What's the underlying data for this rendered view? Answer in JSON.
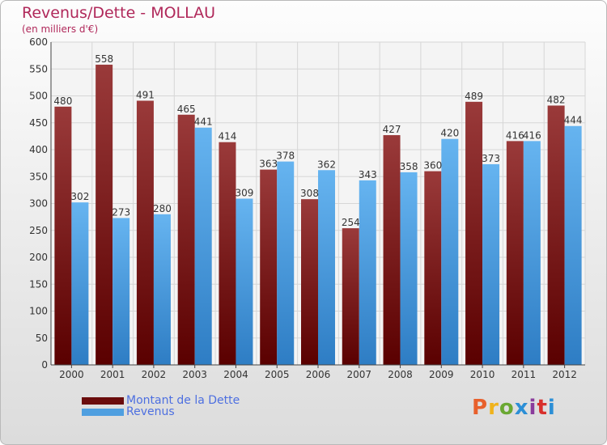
{
  "header": {
    "title": "Revenus/Dette - MOLLAU",
    "subtitle": "(en milliers d'€)"
  },
  "legend": {
    "items": [
      {
        "label": "Montant de la Dette",
        "color": "#7a1414"
      },
      {
        "label": "Revenus",
        "color": "#4f9fe0"
      }
    ]
  },
  "logo": {
    "text": "Proxiti",
    "colors": [
      "#e8602c",
      "#f0b31c",
      "#6aa832",
      "#2c8fd6",
      "#8a3c9c",
      "#d8302c",
      "#2c8fd6"
    ]
  },
  "chart_data": {
    "type": "bar",
    "title": "Revenus/Dette - MOLLAU",
    "subtitle": "(en milliers d'€)",
    "categories": [
      "2000",
      "2001",
      "2002",
      "2003",
      "2004",
      "2005",
      "2006",
      "2007",
      "2008",
      "2009",
      "2010",
      "2011",
      "2012"
    ],
    "series": [
      {
        "name": "Montant de la Dette",
        "color": "#7a1414",
        "values": [
          480,
          558,
          491,
          465,
          414,
          363,
          308,
          254,
          427,
          360,
          489,
          416,
          482
        ]
      },
      {
        "name": "Revenus",
        "color": "#4f9fe0",
        "values": [
          302,
          273,
          280,
          441,
          309,
          378,
          362,
          343,
          358,
          420,
          373,
          416,
          444
        ]
      }
    ],
    "ylim": [
      0,
      600
    ],
    "yticks": [
      0,
      50,
      100,
      150,
      200,
      250,
      300,
      350,
      400,
      450,
      500,
      550,
      600
    ],
    "grid": true,
    "legend_position": "bottom-left"
  }
}
